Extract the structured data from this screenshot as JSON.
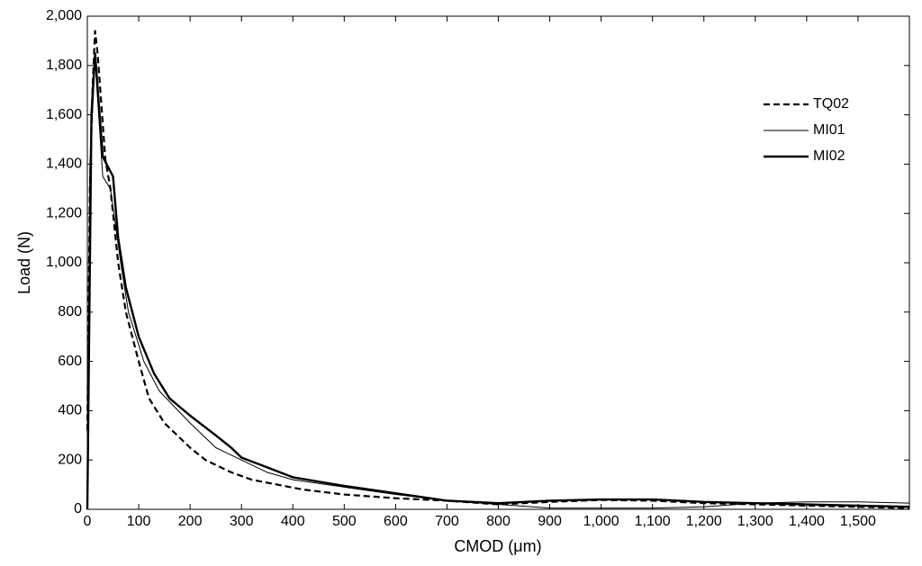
{
  "chart_data": {
    "type": "line",
    "x_label": "CMOD (μm)",
    "y_label": "Load (N)",
    "xlim": [
      0,
      1600
    ],
    "ylim": [
      0,
      2000
    ],
    "xticks": [
      0,
      100,
      200,
      300,
      400,
      500,
      600,
      700,
      800,
      900,
      {
        "value": 1000,
        "label": "1,000"
      },
      {
        "value": 1100,
        "label": "1,100"
      },
      {
        "value": 1200,
        "label": "1,200"
      },
      {
        "value": 1300,
        "label": "1,300"
      },
      {
        "value": 1400,
        "label": "1,400"
      },
      {
        "value": 1500,
        "label": "1,500"
      }
    ],
    "yticks": [
      0,
      200,
      400,
      600,
      800,
      {
        "value": 1000,
        "label": "1,000"
      },
      {
        "value": 1200,
        "label": "1,200"
      },
      {
        "value": 1400,
        "label": "1,400"
      },
      {
        "value": 1600,
        "label": "1,600"
      },
      {
        "value": 1800,
        "label": "1,800"
      },
      {
        "value": 2000,
        "label": "2,000"
      }
    ],
    "legend": "upper right",
    "series": [
      {
        "name": "TQ02",
        "color": "#000000",
        "style": "dashed",
        "width": 2.2,
        "x": [
          0,
          5,
          10,
          15,
          20,
          35,
          45,
          60,
          75,
          100,
          120,
          150,
          200,
          230,
          280,
          320,
          370,
          420,
          500,
          600,
          700,
          800,
          900,
          1000,
          1100,
          1200,
          1300,
          1400,
          1500,
          1600
        ],
        "values": [
          320,
          1300,
          1700,
          1940,
          1850,
          1420,
          1300,
          1000,
          800,
          600,
          450,
          350,
          250,
          200,
          150,
          120,
          100,
          80,
          60,
          45,
          35,
          20,
          30,
          38,
          35,
          25,
          20,
          15,
          10,
          5
        ]
      },
      {
        "name": "MI01",
        "color": "#000000",
        "style": "solid",
        "width": 1,
        "x": [
          0,
          5,
          15,
          30,
          45,
          65,
          80,
          110,
          140,
          200,
          250,
          300,
          350,
          400,
          500,
          600,
          700,
          800,
          900,
          1000,
          1100,
          1200,
          1300,
          1400,
          1500,
          1600
        ],
        "values": [
          0,
          1400,
          1820,
          1350,
          1300,
          1000,
          800,
          600,
          480,
          350,
          250,
          200,
          150,
          120,
          90,
          60,
          35,
          20,
          5,
          5,
          5,
          10,
          25,
          30,
          30,
          25
        ]
      },
      {
        "name": "MI02",
        "color": "#000000",
        "style": "solid",
        "width": 2.4,
        "x": [
          0,
          8,
          15,
          30,
          50,
          60,
          75,
          100,
          130,
          160,
          200,
          250,
          280,
          300,
          350,
          400,
          500,
          600,
          700,
          800,
          900,
          1000,
          1100,
          1200,
          1300,
          1400,
          1500,
          1600
        ],
        "values": [
          0,
          1600,
          1850,
          1430,
          1350,
          1100,
          900,
          700,
          550,
          450,
          380,
          300,
          250,
          210,
          170,
          130,
          95,
          65,
          35,
          25,
          35,
          40,
          40,
          30,
          25,
          20,
          15,
          10
        ]
      }
    ]
  }
}
